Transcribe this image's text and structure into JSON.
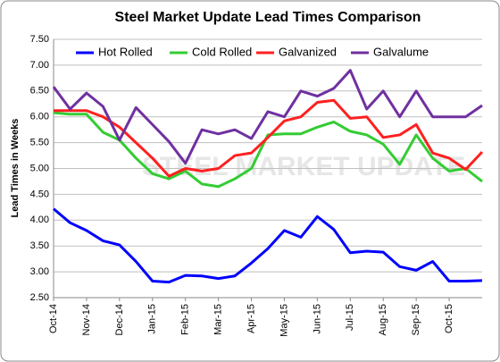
{
  "chart_data": {
    "type": "line",
    "title": "Steel Market Update Lead Times Comparison",
    "watermark": "STEEL MARKET UPDATE",
    "y_label": "Lead Times in Weeks",
    "categories": [
      "Oct-14",
      null,
      "Nov-14",
      null,
      "Dec-14",
      null,
      "Jan-15",
      null,
      "Feb-15",
      null,
      "Mar-15",
      null,
      "Apr-15",
      null,
      "May-15",
      null,
      "Jun-15",
      null,
      "Jul-15",
      null,
      "Aug-15",
      null,
      "Sep-15",
      null,
      "Oct-15",
      null,
      null
    ],
    "series": [
      {
        "name": "Hot Rolled",
        "color": "#0000ff",
        "values": [
          4.22,
          3.95,
          3.8,
          3.6,
          3.52,
          3.2,
          2.82,
          2.8,
          2.93,
          2.92,
          2.87,
          2.92,
          3.17,
          3.45,
          3.8,
          3.67,
          4.07,
          3.82,
          3.37,
          3.4,
          3.38,
          3.1,
          3.03,
          3.2,
          2.82,
          2.82,
          2.83
        ]
      },
      {
        "name": "Cold Rolled",
        "color": "#33cc33",
        "values": [
          6.08,
          6.05,
          6.05,
          5.7,
          5.55,
          5.2,
          4.9,
          4.8,
          4.95,
          4.7,
          4.65,
          4.8,
          5.0,
          5.65,
          5.67,
          5.67,
          5.8,
          5.9,
          5.72,
          5.65,
          5.47,
          5.08,
          5.65,
          5.2,
          4.95,
          5.0,
          4.75
        ]
      },
      {
        "name": "Galvanized",
        "color": "#ff2020",
        "values": [
          6.12,
          6.12,
          6.12,
          6.0,
          5.8,
          5.5,
          5.2,
          4.85,
          5.0,
          4.95,
          5.0,
          5.25,
          5.3,
          5.6,
          5.92,
          6.0,
          6.28,
          6.32,
          5.97,
          6.0,
          5.6,
          5.65,
          5.85,
          5.3,
          5.2,
          4.98,
          5.32
        ]
      },
      {
        "name": "Galvalume",
        "color": "#7030a0",
        "values": [
          6.58,
          6.15,
          6.46,
          6.2,
          5.55,
          6.18,
          5.85,
          5.52,
          5.1,
          5.75,
          5.67,
          5.75,
          5.58,
          6.1,
          6.0,
          6.5,
          6.4,
          6.55,
          6.9,
          6.15,
          6.5,
          6.0,
          6.5,
          6.0,
          6.0,
          6.0,
          6.22
        ]
      }
    ],
    "ylim": [
      2.5,
      7.5
    ],
    "yticks": [
      {
        "value": 2.5,
        "label": "2.50"
      },
      {
        "value": 3,
        "label": "3.00"
      },
      {
        "value": 3.5,
        "label": "3.50"
      },
      {
        "value": 4,
        "label": "4.00"
      },
      {
        "value": 4.5,
        "label": "4.50"
      },
      {
        "value": 5,
        "label": "5.00"
      },
      {
        "value": 5.5,
        "label": "5.50"
      },
      {
        "value": 6,
        "label": "6.00"
      },
      {
        "value": 6.5,
        "label": "6.50"
      },
      {
        "value": 7,
        "label": "7.00"
      },
      {
        "value": 7.5,
        "label": "7.50"
      }
    ],
    "grid": true,
    "legend": "top"
  }
}
